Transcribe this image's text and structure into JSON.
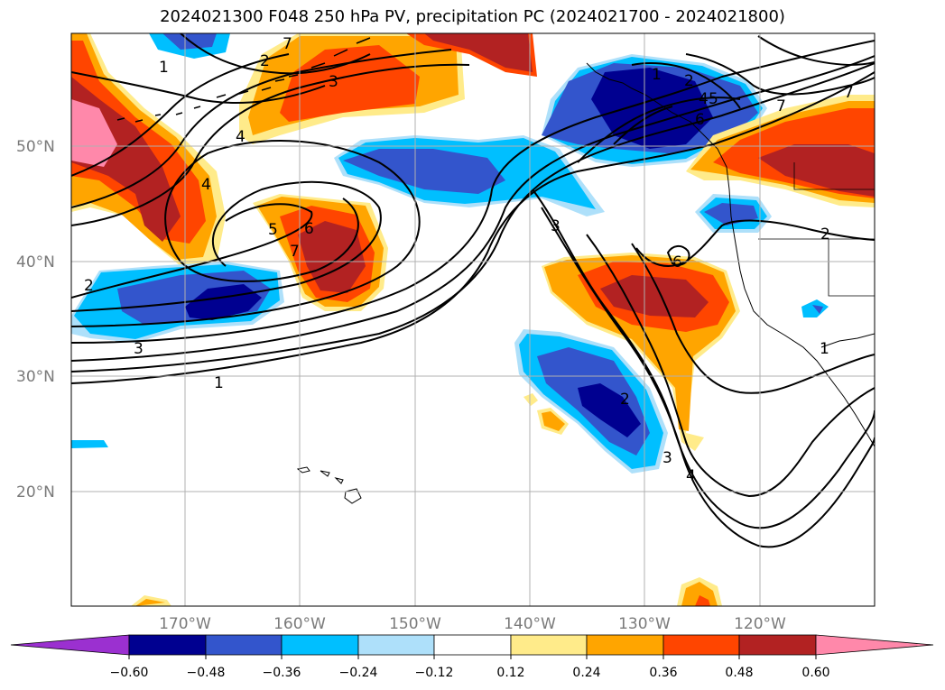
{
  "title": "2024021300 F048 250 hPa PV, precipitation PC (2024021700 - 2024021800)",
  "map": {
    "lat_labels": [
      "50°N",
      "40°N",
      "30°N",
      "20°N"
    ],
    "lon_labels": [
      "170°W",
      "160°W",
      "150°W",
      "140°W",
      "130°W",
      "120°W"
    ],
    "contour_labels": [
      "1",
      "2",
      "3",
      "4",
      "5",
      "6",
      "7",
      "7",
      "2",
      "3",
      "4",
      "6",
      "1",
      "2",
      "4",
      "5",
      "6",
      "7",
      "3",
      "2",
      "1",
      "2",
      "3",
      "4",
      "7",
      "1",
      "7"
    ]
  },
  "colorbar": {
    "ticks": [
      "−0.60",
      "−0.48",
      "−0.36",
      "−0.24",
      "−0.12",
      "0.12",
      "0.24",
      "0.36",
      "0.48",
      "0.60"
    ],
    "colors": [
      "#9b30d0",
      "#000090",
      "#3355cc",
      "#00bfff",
      "#aee0fa",
      "#ffffff",
      "#ffeb8a",
      "#ffa500",
      "#ff4500",
      "#b22222",
      "#ff88aa"
    ]
  }
}
